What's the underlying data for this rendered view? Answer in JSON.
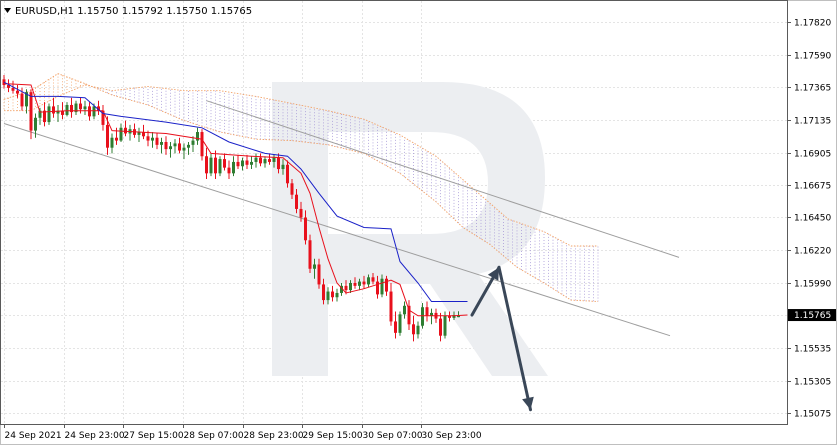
{
  "symbol_header": "EURUSD,H1  1.15750 1.15792 1.15750 1.15765",
  "chart_data": {
    "type": "candlestick",
    "symbol": "EURUSD",
    "timeframe": "H1",
    "ohlc_header": {
      "open": 1.1575,
      "high": 1.15792,
      "low": 1.1575,
      "close": 1.15765
    },
    "last_price_label": "1.15765",
    "last_price": 1.15765,
    "y_ticks": [
      "1.17820",
      "1.17590",
      "1.17365",
      "1.17135",
      "1.16905",
      "1.16675",
      "1.16450",
      "1.16220",
      "1.15990",
      "1.15765",
      "1.15535",
      "1.15305",
      "1.15075"
    ],
    "ylim": [
      1.15,
      1.1797
    ],
    "x_ticks": [
      "24 Sep 2021",
      "24 Sep 23:00",
      "27 Sep 15:00",
      "28 Sep 07:00",
      "28 Sep 23:00",
      "29 Sep 15:00",
      "30 Sep 07:00",
      "30 Sep 23:00"
    ],
    "grid": true,
    "colors": {
      "bull": "#2f7d32",
      "bear": "#e8101c",
      "tenkan": "#e8101c",
      "kijun": "#1a21c8",
      "cloud": "#f2a36a",
      "cloud_alt": "#a89ad8",
      "channel": "#9e9e9e",
      "arrow": "#3a4758"
    },
    "candles": [
      {
        "o": 1.1742,
        "h": 1.1745,
        "l": 1.17355,
        "c": 1.1738
      },
      {
        "o": 1.1738,
        "h": 1.1742,
        "l": 1.1733,
        "c": 1.1736
      },
      {
        "o": 1.1736,
        "h": 1.1741,
        "l": 1.1732,
        "c": 1.1734
      },
      {
        "o": 1.1734,
        "h": 1.1738,
        "l": 1.1729,
        "c": 1.1732
      },
      {
        "o": 1.1732,
        "h": 1.1736,
        "l": 1.172,
        "c": 1.1723
      },
      {
        "o": 1.1723,
        "h": 1.1735,
        "l": 1.1718,
        "c": 1.1733
      },
      {
        "o": 1.1733,
        "h": 1.1735,
        "l": 1.17,
        "c": 1.1706
      },
      {
        "o": 1.1706,
        "h": 1.1718,
        "l": 1.1701,
        "c": 1.1715
      },
      {
        "o": 1.1715,
        "h": 1.1722,
        "l": 1.171,
        "c": 1.172
      },
      {
        "o": 1.172,
        "h": 1.1726,
        "l": 1.1709,
        "c": 1.1712
      },
      {
        "o": 1.1712,
        "h": 1.1725,
        "l": 1.171,
        "c": 1.1723
      },
      {
        "o": 1.1723,
        "h": 1.1729,
        "l": 1.1715,
        "c": 1.1718
      },
      {
        "o": 1.1718,
        "h": 1.1724,
        "l": 1.1712,
        "c": 1.172
      },
      {
        "o": 1.172,
        "h": 1.1726,
        "l": 1.1714,
        "c": 1.1717
      },
      {
        "o": 1.1717,
        "h": 1.1726,
        "l": 1.1716,
        "c": 1.1724
      },
      {
        "o": 1.1724,
        "h": 1.1729,
        "l": 1.1715,
        "c": 1.1719
      },
      {
        "o": 1.1719,
        "h": 1.1727,
        "l": 1.1717,
        "c": 1.1725
      },
      {
        "o": 1.1725,
        "h": 1.1729,
        "l": 1.1718,
        "c": 1.1721
      },
      {
        "o": 1.1721,
        "h": 1.1727,
        "l": 1.1717,
        "c": 1.1723
      },
      {
        "o": 1.1723,
        "h": 1.1726,
        "l": 1.1713,
        "c": 1.1716
      },
      {
        "o": 1.1716,
        "h": 1.1725,
        "l": 1.1714,
        "c": 1.1723
      },
      {
        "o": 1.1723,
        "h": 1.1727,
        "l": 1.1717,
        "c": 1.172
      },
      {
        "o": 1.172,
        "h": 1.1724,
        "l": 1.1706,
        "c": 1.171
      },
      {
        "o": 1.171,
        "h": 1.1716,
        "l": 1.1689,
        "c": 1.1694
      },
      {
        "o": 1.1694,
        "h": 1.1704,
        "l": 1.169,
        "c": 1.1701
      },
      {
        "o": 1.1701,
        "h": 1.1708,
        "l": 1.1696,
        "c": 1.1699
      },
      {
        "o": 1.1699,
        "h": 1.1711,
        "l": 1.1698,
        "c": 1.1708
      },
      {
        "o": 1.1708,
        "h": 1.1713,
        "l": 1.1702,
        "c": 1.1704
      },
      {
        "o": 1.1704,
        "h": 1.171,
        "l": 1.1699,
        "c": 1.1707
      },
      {
        "o": 1.1707,
        "h": 1.1711,
        "l": 1.1701,
        "c": 1.1703
      },
      {
        "o": 1.1703,
        "h": 1.1708,
        "l": 1.1698,
        "c": 1.1705
      },
      {
        "o": 1.1705,
        "h": 1.171,
        "l": 1.17,
        "c": 1.1702
      },
      {
        "o": 1.1702,
        "h": 1.1706,
        "l": 1.1695,
        "c": 1.1699
      },
      {
        "o": 1.1699,
        "h": 1.1705,
        "l": 1.1694,
        "c": 1.1701
      },
      {
        "o": 1.1701,
        "h": 1.1704,
        "l": 1.1693,
        "c": 1.1696
      },
      {
        "o": 1.1696,
        "h": 1.1701,
        "l": 1.169,
        "c": 1.1698
      },
      {
        "o": 1.1698,
        "h": 1.1702,
        "l": 1.1689,
        "c": 1.1693
      },
      {
        "o": 1.1693,
        "h": 1.1698,
        "l": 1.1687,
        "c": 1.1695
      },
      {
        "o": 1.1695,
        "h": 1.17,
        "l": 1.169,
        "c": 1.1697
      },
      {
        "o": 1.1697,
        "h": 1.1701,
        "l": 1.169,
        "c": 1.1692
      },
      {
        "o": 1.1692,
        "h": 1.1697,
        "l": 1.1686,
        "c": 1.1694
      },
      {
        "o": 1.1694,
        "h": 1.1698,
        "l": 1.1689,
        "c": 1.1696
      },
      {
        "o": 1.1696,
        "h": 1.1702,
        "l": 1.1691,
        "c": 1.1699
      },
      {
        "o": 1.1699,
        "h": 1.1708,
        "l": 1.1696,
        "c": 1.1705
      },
      {
        "o": 1.1705,
        "h": 1.1707,
        "l": 1.1685,
        "c": 1.1688
      },
      {
        "o": 1.1688,
        "h": 1.1694,
        "l": 1.1672,
        "c": 1.1676
      },
      {
        "o": 1.1676,
        "h": 1.169,
        "l": 1.1674,
        "c": 1.1687
      },
      {
        "o": 1.1687,
        "h": 1.1692,
        "l": 1.1672,
        "c": 1.1676
      },
      {
        "o": 1.1676,
        "h": 1.1688,
        "l": 1.1674,
        "c": 1.1686
      },
      {
        "o": 1.1686,
        "h": 1.169,
        "l": 1.1678,
        "c": 1.168
      },
      {
        "o": 1.168,
        "h": 1.1685,
        "l": 1.1672,
        "c": 1.1676
      },
      {
        "o": 1.1676,
        "h": 1.1688,
        "l": 1.1674,
        "c": 1.1684
      },
      {
        "o": 1.1684,
        "h": 1.1689,
        "l": 1.1679,
        "c": 1.1681
      },
      {
        "o": 1.1681,
        "h": 1.1687,
        "l": 1.1678,
        "c": 1.1685
      },
      {
        "o": 1.1685,
        "h": 1.1689,
        "l": 1.1679,
        "c": 1.1682
      },
      {
        "o": 1.1682,
        "h": 1.1688,
        "l": 1.1679,
        "c": 1.1684
      },
      {
        "o": 1.1684,
        "h": 1.169,
        "l": 1.168,
        "c": 1.1687
      },
      {
        "o": 1.1687,
        "h": 1.169,
        "l": 1.1681,
        "c": 1.1683
      },
      {
        "o": 1.1683,
        "h": 1.1688,
        "l": 1.168,
        "c": 1.1686
      },
      {
        "o": 1.1686,
        "h": 1.169,
        "l": 1.1682,
        "c": 1.1684
      },
      {
        "o": 1.1684,
        "h": 1.1689,
        "l": 1.168,
        "c": 1.1687
      },
      {
        "o": 1.1687,
        "h": 1.169,
        "l": 1.1676,
        "c": 1.1679
      },
      {
        "o": 1.1679,
        "h": 1.1686,
        "l": 1.1675,
        "c": 1.1682
      },
      {
        "o": 1.1682,
        "h": 1.1685,
        "l": 1.1666,
        "c": 1.1669
      },
      {
        "o": 1.1669,
        "h": 1.1672,
        "l": 1.1658,
        "c": 1.1661
      },
      {
        "o": 1.1661,
        "h": 1.1665,
        "l": 1.1648,
        "c": 1.1651
      },
      {
        "o": 1.1651,
        "h": 1.1656,
        "l": 1.1642,
        "c": 1.1645
      },
      {
        "o": 1.1645,
        "h": 1.165,
        "l": 1.1626,
        "c": 1.1629
      },
      {
        "o": 1.1629,
        "h": 1.1633,
        "l": 1.1606,
        "c": 1.1609
      },
      {
        "o": 1.1609,
        "h": 1.1616,
        "l": 1.1602,
        "c": 1.1612
      },
      {
        "o": 1.1612,
        "h": 1.1616,
        "l": 1.1595,
        "c": 1.1598
      },
      {
        "o": 1.1598,
        "h": 1.1602,
        "l": 1.1584,
        "c": 1.1587
      },
      {
        "o": 1.1587,
        "h": 1.1596,
        "l": 1.1584,
        "c": 1.1593
      },
      {
        "o": 1.1593,
        "h": 1.1597,
        "l": 1.1586,
        "c": 1.1589
      },
      {
        "o": 1.1589,
        "h": 1.1595,
        "l": 1.1586,
        "c": 1.1592
      },
      {
        "o": 1.1592,
        "h": 1.1599,
        "l": 1.159,
        "c": 1.1597
      },
      {
        "o": 1.1597,
        "h": 1.1601,
        "l": 1.1591,
        "c": 1.1594
      },
      {
        "o": 1.1594,
        "h": 1.1601,
        "l": 1.1592,
        "c": 1.1599
      },
      {
        "o": 1.1599,
        "h": 1.1603,
        "l": 1.1595,
        "c": 1.1597
      },
      {
        "o": 1.1597,
        "h": 1.1602,
        "l": 1.1594,
        "c": 1.16
      },
      {
        "o": 1.16,
        "h": 1.1604,
        "l": 1.1595,
        "c": 1.1598
      },
      {
        "o": 1.1598,
        "h": 1.1605,
        "l": 1.1596,
        "c": 1.1603
      },
      {
        "o": 1.1603,
        "h": 1.1606,
        "l": 1.1598,
        "c": 1.16
      },
      {
        "o": 1.16,
        "h": 1.1604,
        "l": 1.1588,
        "c": 1.1591
      },
      {
        "o": 1.1591,
        "h": 1.1605,
        "l": 1.1589,
        "c": 1.1602
      },
      {
        "o": 1.1602,
        "h": 1.1604,
        "l": 1.159,
        "c": 1.1593
      },
      {
        "o": 1.1593,
        "h": 1.1599,
        "l": 1.1569,
        "c": 1.1572
      },
      {
        "o": 1.1572,
        "h": 1.1579,
        "l": 1.156,
        "c": 1.1564
      },
      {
        "o": 1.1564,
        "h": 1.1579,
        "l": 1.1562,
        "c": 1.1577
      },
      {
        "o": 1.1577,
        "h": 1.1586,
        "l": 1.1574,
        "c": 1.1583
      },
      {
        "o": 1.1583,
        "h": 1.1587,
        "l": 1.1566,
        "c": 1.157
      },
      {
        "o": 1.157,
        "h": 1.1576,
        "l": 1.1558,
        "c": 1.1563
      },
      {
        "o": 1.1563,
        "h": 1.1572,
        "l": 1.156,
        "c": 1.1569
      },
      {
        "o": 1.1569,
        "h": 1.1585,
        "l": 1.1567,
        "c": 1.1582
      },
      {
        "o": 1.1582,
        "h": 1.1586,
        "l": 1.1572,
        "c": 1.1576
      },
      {
        "o": 1.1576,
        "h": 1.1581,
        "l": 1.157,
        "c": 1.1578
      },
      {
        "o": 1.1578,
        "h": 1.1581,
        "l": 1.1571,
        "c": 1.1574
      },
      {
        "o": 1.1574,
        "h": 1.1578,
        "l": 1.1558,
        "c": 1.1562
      },
      {
        "o": 1.1562,
        "h": 1.1579,
        "l": 1.156,
        "c": 1.1576
      },
      {
        "o": 1.1576,
        "h": 1.1579,
        "l": 1.1572,
        "c": 1.15745
      },
      {
        "o": 1.15745,
        "h": 1.1579,
        "l": 1.1573,
        "c": 1.15765
      },
      {
        "o": 1.1575,
        "h": 1.15792,
        "l": 1.1575,
        "c": 1.15765
      }
    ],
    "tenkan": [
      [
        0,
        1.1739
      ],
      [
        6,
        1.1738
      ],
      [
        8,
        1.1719
      ],
      [
        14,
        1.172
      ],
      [
        22,
        1.172
      ],
      [
        24,
        1.1706
      ],
      [
        36,
        1.1704
      ],
      [
        44,
        1.17
      ],
      [
        46,
        1.169
      ],
      [
        55,
        1.1688
      ],
      [
        62,
        1.1687
      ],
      [
        66,
        1.1676
      ],
      [
        68,
        1.1662
      ],
      [
        70,
        1.1638
      ],
      [
        72,
        1.1616
      ],
      [
        74,
        1.1599
      ],
      [
        76,
        1.1592
      ],
      [
        80,
        1.1595
      ],
      [
        86,
        1.1601
      ],
      [
        88,
        1.1598
      ],
      [
        90,
        1.158
      ],
      [
        92,
        1.1576
      ],
      [
        100,
        1.1576
      ],
      [
        103,
        1.15765
      ]
    ],
    "kijun": [
      [
        0,
        1.174
      ],
      [
        6,
        1.173
      ],
      [
        12,
        1.173
      ],
      [
        18,
        1.1729
      ],
      [
        22,
        1.1718
      ],
      [
        26,
        1.1716
      ],
      [
        36,
        1.1712
      ],
      [
        44,
        1.1708
      ],
      [
        50,
        1.1698
      ],
      [
        58,
        1.169
      ],
      [
        63,
        1.1688
      ],
      [
        66,
        1.1679
      ],
      [
        70,
        1.1662
      ],
      [
        74,
        1.1646
      ],
      [
        80,
        1.1638
      ],
      [
        86,
        1.1637
      ],
      [
        88,
        1.1614
      ],
      [
        92,
        1.1599
      ],
      [
        95,
        1.1586
      ],
      [
        103,
        1.1586
      ]
    ],
    "span_a": [
      [
        0,
        1.1728
      ],
      [
        6,
        1.1734
      ],
      [
        12,
        1.1746
      ],
      [
        18,
        1.1739
      ],
      [
        24,
        1.1731
      ],
      [
        32,
        1.1724
      ],
      [
        40,
        1.1713
      ],
      [
        48,
        1.1705
      ],
      [
        56,
        1.17
      ],
      [
        64,
        1.1699
      ],
      [
        72,
        1.1696
      ],
      [
        80,
        1.169
      ],
      [
        88,
        1.1676
      ],
      [
        96,
        1.1656
      ],
      [
        102,
        1.1638
      ],
      [
        108,
        1.1626
      ],
      [
        114,
        1.161
      ],
      [
        120,
        1.1599
      ],
      [
        126,
        1.1587
      ],
      [
        132,
        1.1586
      ]
    ],
    "span_b": [
      [
        0,
        1.172
      ],
      [
        6,
        1.172
      ],
      [
        12,
        1.173
      ],
      [
        18,
        1.1738
      ],
      [
        24,
        1.1734
      ],
      [
        32,
        1.1737
      ],
      [
        40,
        1.1734
      ],
      [
        48,
        1.1734
      ],
      [
        56,
        1.173
      ],
      [
        64,
        1.1725
      ],
      [
        72,
        1.172
      ],
      [
        80,
        1.1714
      ],
      [
        88,
        1.1703
      ],
      [
        96,
        1.1688
      ],
      [
        104,
        1.1666
      ],
      [
        112,
        1.1644
      ],
      [
        120,
        1.1635
      ],
      [
        126,
        1.1625
      ],
      [
        132,
        1.1625
      ]
    ],
    "channel_lines": [
      {
        "x1": 0,
        "y1": 1.1711,
        "x2": 148,
        "y2": 1.1562
      },
      {
        "x1": 45,
        "y1": 1.1727,
        "x2": 150,
        "y2": 1.1617
      }
    ],
    "forecast_path": [
      [
        104,
        1.15765
      ],
      [
        110,
        1.161
      ],
      [
        117,
        1.151
      ]
    ]
  }
}
